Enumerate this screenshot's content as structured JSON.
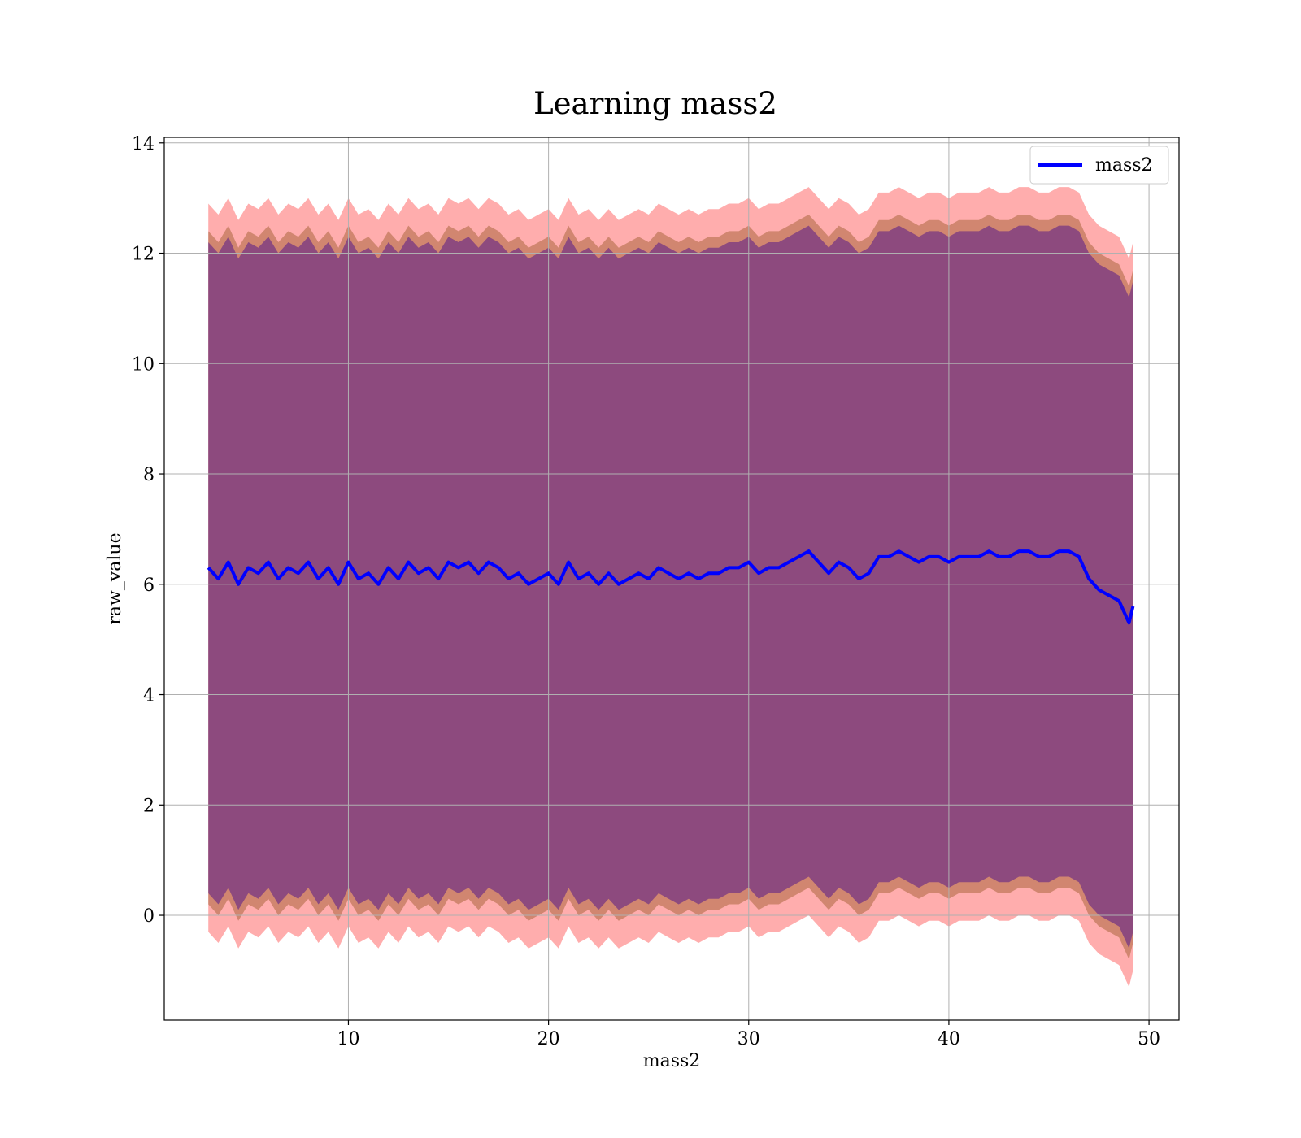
{
  "chart_data": {
    "type": "line",
    "title": "Learning mass2",
    "xlabel": "mass2",
    "ylabel": "raw_value",
    "xlim": [
      0.8,
      51.5
    ],
    "ylim": [
      -1.9,
      14.1
    ],
    "xticks": [
      10,
      20,
      30,
      40,
      50
    ],
    "yticks": [
      0,
      2,
      4,
      6,
      8,
      10,
      12,
      14
    ],
    "grid": true,
    "legend": {
      "position": "top-right",
      "entries": [
        "mass2"
      ]
    },
    "colors": {
      "line": "#0000ff",
      "band_outer": "#ff0000",
      "band_inner": "#7b3f00",
      "band_core": "#551a8b"
    },
    "series": [
      {
        "name": "mass2",
        "x": [
          3.0,
          3.5,
          4.0,
          4.5,
          5.0,
          5.5,
          6.0,
          6.5,
          7.0,
          7.5,
          8.0,
          8.5,
          9.0,
          9.5,
          10.0,
          10.5,
          11.0,
          11.5,
          12.0,
          12.5,
          13.0,
          13.5,
          14.0,
          14.5,
          15.0,
          15.5,
          16.0,
          16.5,
          17.0,
          17.5,
          18.0,
          18.5,
          19.0,
          19.5,
          20.0,
          20.5,
          21.0,
          21.5,
          22.0,
          22.5,
          23.0,
          23.5,
          24.0,
          24.5,
          25.0,
          25.5,
          26.0,
          26.5,
          27.0,
          27.5,
          28.0,
          28.5,
          29.0,
          29.5,
          30.0,
          30.5,
          31.0,
          31.5,
          32.0,
          32.5,
          33.0,
          33.5,
          34.0,
          34.5,
          35.0,
          35.5,
          36.0,
          36.5,
          37.0,
          37.5,
          38.0,
          38.5,
          39.0,
          39.5,
          40.0,
          40.5,
          41.0,
          41.5,
          42.0,
          42.5,
          43.0,
          43.5,
          44.0,
          44.5,
          45.0,
          45.5,
          46.0,
          46.5,
          47.0,
          47.5,
          48.0,
          48.5,
          49.0,
          49.2
        ],
        "y": [
          6.3,
          6.1,
          6.4,
          6.0,
          6.3,
          6.2,
          6.4,
          6.1,
          6.3,
          6.2,
          6.4,
          6.1,
          6.3,
          6.0,
          6.4,
          6.1,
          6.2,
          6.0,
          6.3,
          6.1,
          6.4,
          6.2,
          6.3,
          6.1,
          6.4,
          6.3,
          6.4,
          6.2,
          6.4,
          6.3,
          6.1,
          6.2,
          6.0,
          6.1,
          6.2,
          6.0,
          6.4,
          6.1,
          6.2,
          6.0,
          6.2,
          6.0,
          6.1,
          6.2,
          6.1,
          6.3,
          6.2,
          6.1,
          6.2,
          6.1,
          6.2,
          6.2,
          6.3,
          6.3,
          6.4,
          6.2,
          6.3,
          6.3,
          6.4,
          6.5,
          6.6,
          6.4,
          6.2,
          6.4,
          6.3,
          6.1,
          6.2,
          6.5,
          6.5,
          6.6,
          6.5,
          6.4,
          6.5,
          6.5,
          6.4,
          6.5,
          6.5,
          6.5,
          6.6,
          6.5,
          6.5,
          6.6,
          6.6,
          6.5,
          6.5,
          6.6,
          6.6,
          6.5,
          6.1,
          5.9,
          5.8,
          5.7,
          5.3,
          5.6
        ],
        "band_outer_half_width": 6.6,
        "band_inner_half_width": 6.1,
        "band_core_half_width": 5.9
      }
    ]
  }
}
